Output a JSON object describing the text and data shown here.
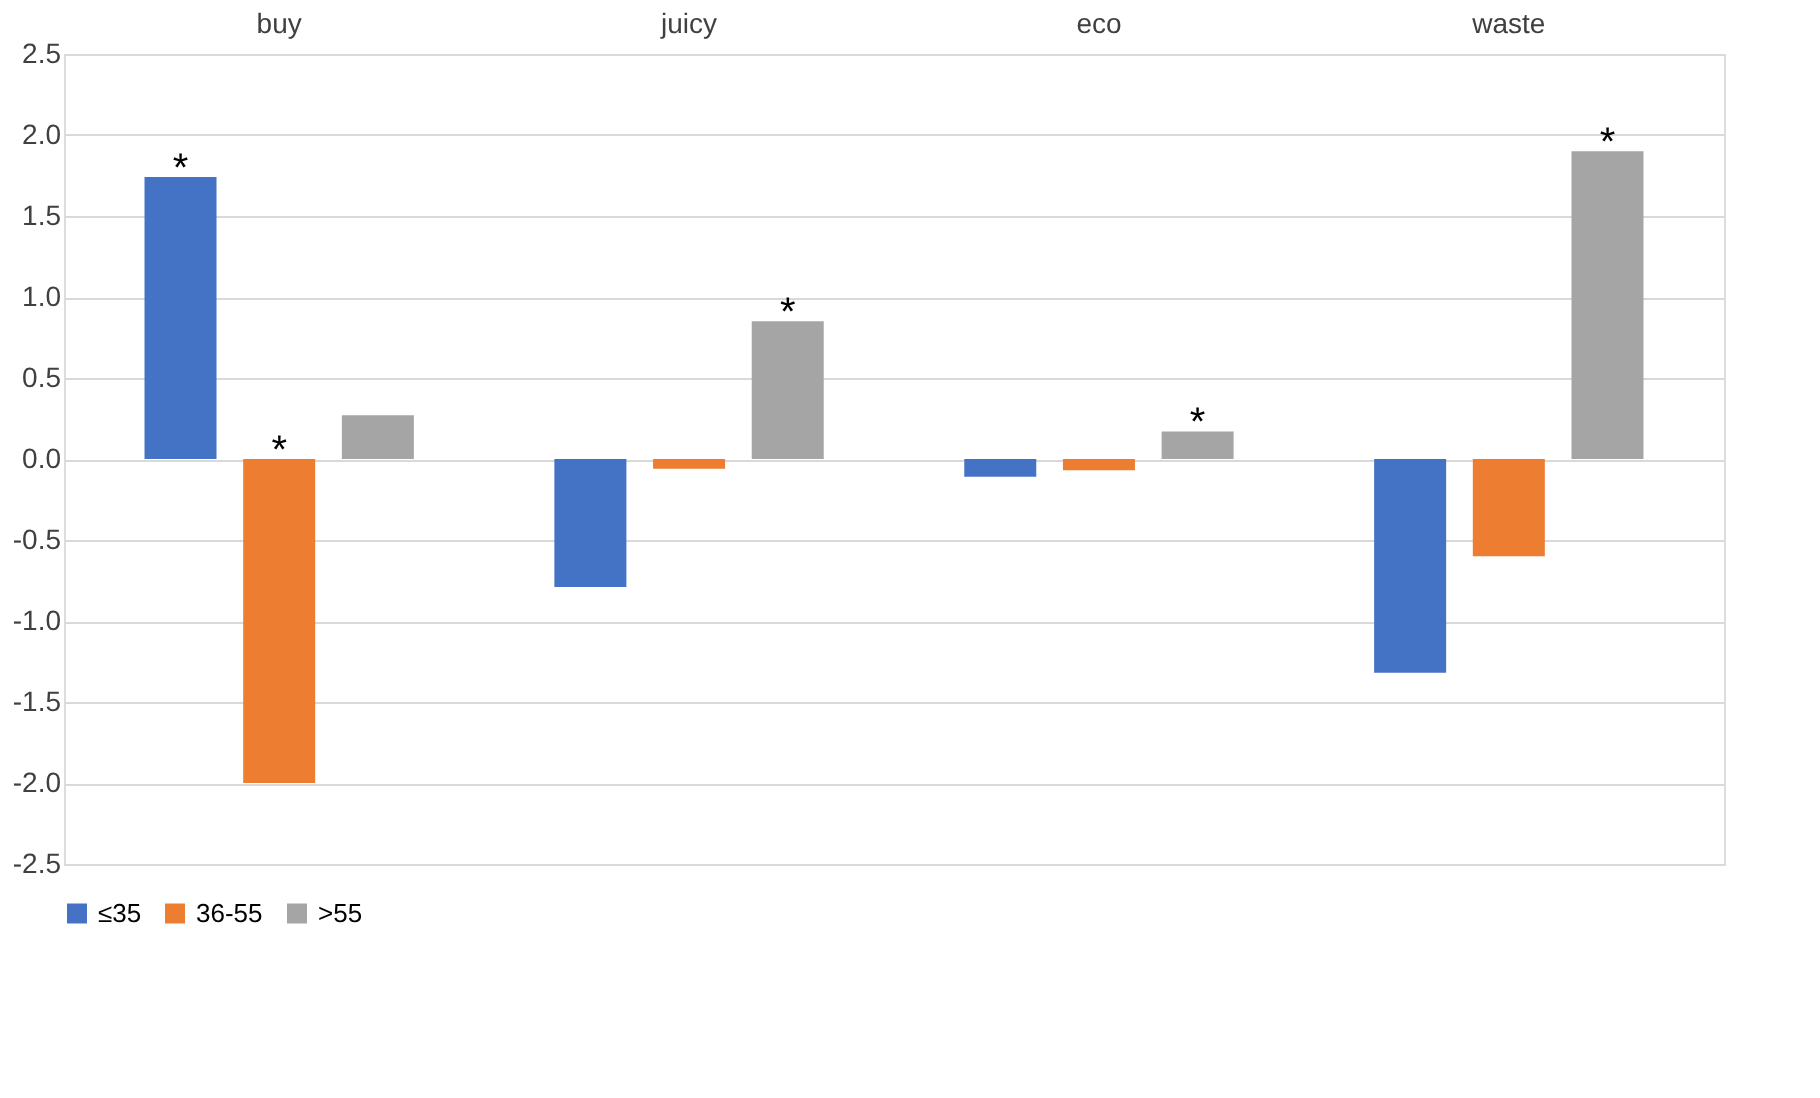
{
  "chart_data": {
    "type": "bar",
    "categories": [
      "buy",
      "juicy",
      "eco",
      "waste"
    ],
    "series": [
      {
        "name": "≤35",
        "color": "#4472c4",
        "values": [
          1.74,
          -0.79,
          -0.11,
          -1.32
        ],
        "value_labels": [
          "*",
          null,
          null,
          null
        ]
      },
      {
        "name": "36-55",
        "color": "#ed7d31",
        "values": [
          -2.0,
          -0.06,
          -0.07,
          -0.6
        ],
        "value_labels": [
          "*",
          null,
          null,
          null
        ]
      },
      {
        "name": ">55",
        "color": "#a5a5a5",
        "values": [
          0.27,
          0.85,
          0.17,
          1.9
        ],
        "value_labels": [
          null,
          "*",
          "*",
          "*"
        ]
      }
    ],
    "ylim": [
      -2.5,
      2.5
    ],
    "yticks": [
      {
        "value": -2.5,
        "label": "-2.5"
      },
      {
        "value": -2.0,
        "label": "-2.0"
      },
      {
        "value": -1.5,
        "label": "-1.5"
      },
      {
        "value": -1.0,
        "label": "-1.0"
      },
      {
        "value": -0.5,
        "label": "-0.5"
      },
      {
        "value": 0,
        "label": "0.0"
      },
      {
        "value": 0.5,
        "label": "0.5"
      },
      {
        "value": 1.0,
        "label": "1.0"
      },
      {
        "value": 1.5,
        "label": "1.5"
      },
      {
        "value": 2.0,
        "label": "2.0"
      },
      {
        "value": 2.5,
        "label": "2.5"
      }
    ],
    "grid": "y",
    "legend": "bottom"
  }
}
